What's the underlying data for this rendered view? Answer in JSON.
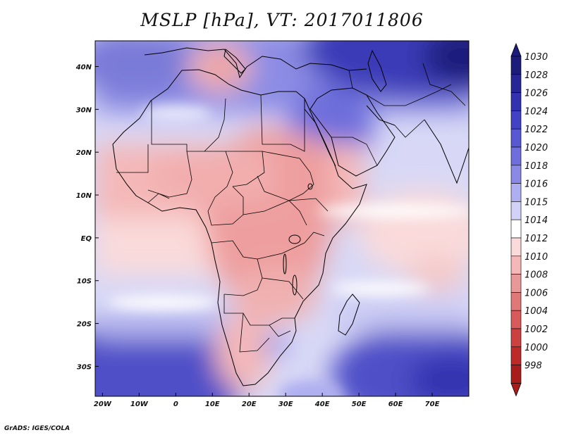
{
  "title": "MSLP [hPa], VT: 2017011806",
  "credit": "GrADS: IGES/COLA",
  "map": {
    "lon_range": [
      -22,
      80
    ],
    "lat_range": [
      -37,
      46
    ],
    "x_ticks": [
      {
        "lon": -20,
        "label": "20W"
      },
      {
        "lon": -10,
        "label": "10W"
      },
      {
        "lon": 0,
        "label": "0"
      },
      {
        "lon": 10,
        "label": "10E"
      },
      {
        "lon": 20,
        "label": "20E"
      },
      {
        "lon": 30,
        "label": "30E"
      },
      {
        "lon": 40,
        "label": "40E"
      },
      {
        "lon": 50,
        "label": "50E"
      },
      {
        "lon": 60,
        "label": "60E"
      },
      {
        "lon": 70,
        "label": "70E"
      }
    ],
    "y_ticks": [
      {
        "lat": 40,
        "label": "40N"
      },
      {
        "lat": 30,
        "label": "30N"
      },
      {
        "lat": 20,
        "label": "20N"
      },
      {
        "lat": 10,
        "label": "10N"
      },
      {
        "lat": 0,
        "label": "EQ"
      },
      {
        "lat": -10,
        "label": "10S"
      },
      {
        "lat": -20,
        "label": "20S"
      },
      {
        "lat": -30,
        "label": "30S"
      }
    ],
    "pressure_features": [
      {
        "name": "low-mediterranean",
        "lon": 11,
        "lat": 39,
        "hpa": 1008
      },
      {
        "name": "low-central-africa",
        "lon": 25,
        "lat": -5,
        "hpa": 1008
      },
      {
        "name": "high-southwest-atlantic",
        "lon": -10,
        "lat": -32,
        "hpa": 1024
      },
      {
        "name": "high-southeast-indian",
        "lon": 72,
        "lat": -33,
        "hpa": 1024
      },
      {
        "name": "high-asia",
        "lon": 78,
        "lat": 44,
        "hpa": 1030
      }
    ]
  },
  "colorbar": {
    "levels": [
      "1030",
      "1028",
      "1026",
      "1024",
      "1022",
      "1020",
      "1018",
      "1016",
      "1015",
      "1014",
      "1012",
      "1010",
      "1008",
      "1006",
      "1004",
      "1002",
      "1000",
      "998"
    ],
    "colors": [
      "#1c1c7a",
      "#262696",
      "#3232b0",
      "#4242c4",
      "#5858d2",
      "#6e6edc",
      "#8a8ae6",
      "#aeaef0",
      "#d2d2f8",
      "#ffffff",
      "#fadada",
      "#f4b8b8",
      "#e89898",
      "#e07878",
      "#d85a5a",
      "#cc4040",
      "#bc2a2a",
      "#a81c1c"
    ]
  }
}
